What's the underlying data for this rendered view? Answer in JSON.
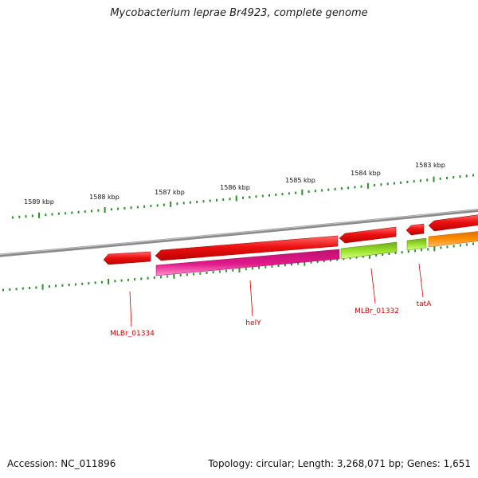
{
  "title": "Mycobacterium leprae Br4923, complete genome",
  "footer": {
    "accession": "Accession: NC_011896",
    "summary": "Topology: circular; Length: 3,268,071 bp; Genes: 1,651"
  },
  "ruler_labels": [
    "1589 kbp",
    "1588 kbp",
    "1587 kbp",
    "1586 kbp",
    "1585 kbp",
    "1584 kbp",
    "1583 kbp"
  ],
  "gene_labels": [
    "MLBr_01334",
    "helY",
    "MLBr_01332",
    "tatA"
  ],
  "colors": {
    "backbone": "#8a8a8a",
    "cds": "#ee1111",
    "helY": "#e0198a",
    "MLBr_01332": "#99e02a",
    "tatA": "#99e02a",
    "orange_feature": "#ff8c00",
    "ticks": "#2e8b2e",
    "label": "#cc0000"
  }
}
